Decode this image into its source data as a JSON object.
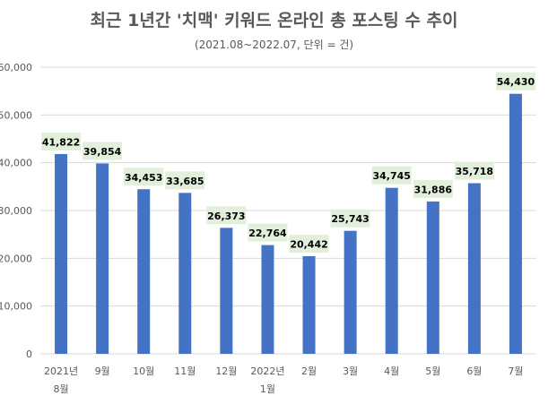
{
  "title": "최근 1년간 '치맥' 키워드 온라인 총 포스팅 수 추이",
  "subtitle": "(2021.08~2022.07, 단위 = 건)",
  "colors": {
    "bar": "#4472C4",
    "label_bg": "#E2EFDA",
    "grid": "#D9D9D9",
    "text": "#595959",
    "label_text": "#000000"
  },
  "chart_data": {
    "type": "bar",
    "categories": [
      [
        "2021년",
        "8월"
      ],
      [
        "9월"
      ],
      [
        "10월"
      ],
      [
        "11월"
      ],
      [
        "12월"
      ],
      [
        "2022년",
        "1월"
      ],
      [
        "2월"
      ],
      [
        "3월"
      ],
      [
        "4월"
      ],
      [
        "5월"
      ],
      [
        "6월"
      ],
      [
        "7월"
      ]
    ],
    "values": [
      41822,
      39854,
      34453,
      33685,
      26373,
      22764,
      20442,
      25743,
      34745,
      31886,
      35718,
      54430
    ],
    "data_labels": [
      "41,822",
      "39,854",
      "34,453",
      "33,685",
      "26,373",
      "22,764",
      "20,442",
      "25,743",
      "34,745",
      "31,886",
      "35,718",
      "54,430"
    ],
    "yticks": [
      "0",
      "10,000",
      "20,000",
      "30,000",
      "40,000",
      "50,000",
      "60,000"
    ],
    "ylim": [
      0,
      60000
    ],
    "grid": true,
    "legend": "none"
  }
}
